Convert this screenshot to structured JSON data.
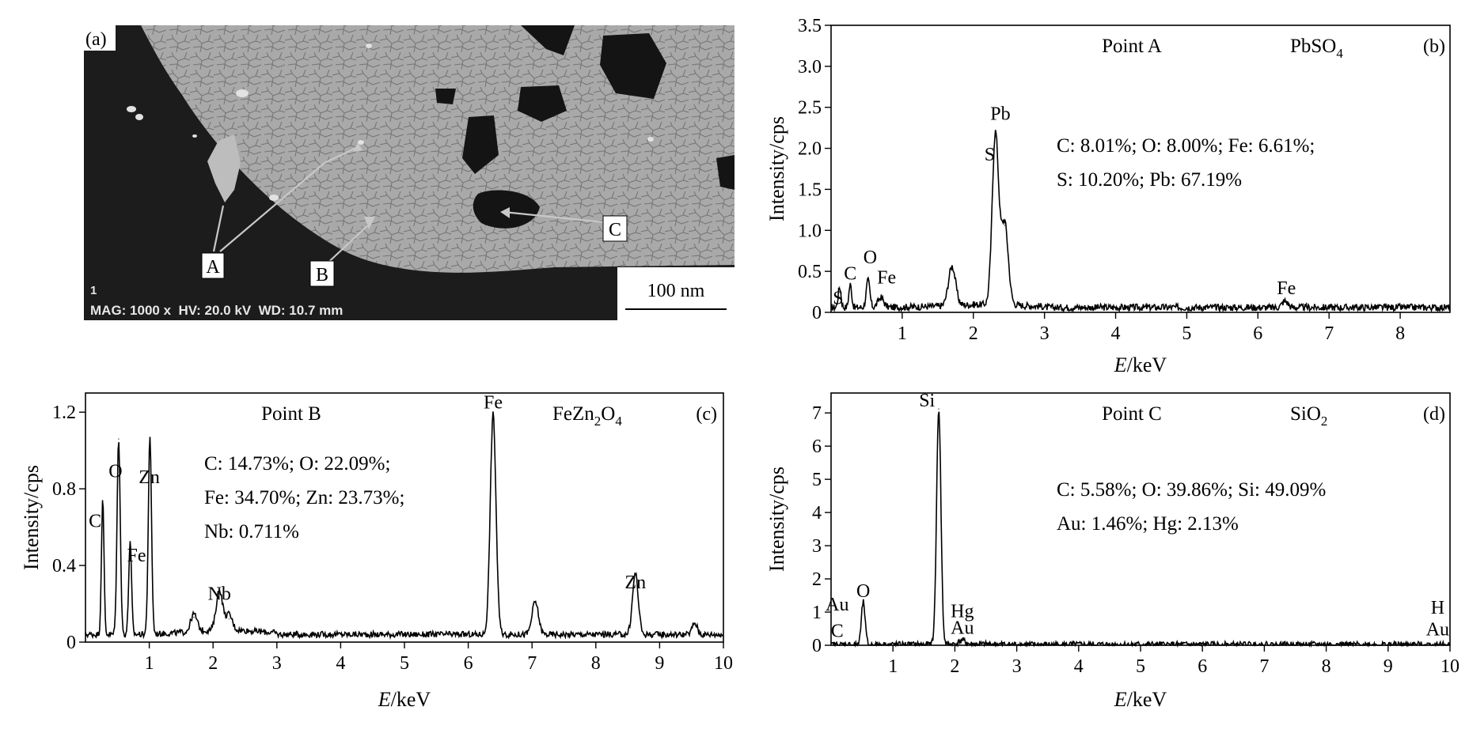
{
  "sem_panel": {
    "panel_label": "(a)",
    "point_labels": [
      "A",
      "B",
      "C"
    ],
    "info_number": "1",
    "info_text": "MAG: 1000 x  HV: 20.0 kV  WD: 10.7 mm",
    "scale_bar_label": "100 nm"
  },
  "chart_data": [
    {
      "panel": "(b)",
      "type": "line",
      "title": "Point A",
      "compound": "PbSO",
      "compound_sub": "4",
      "composition_lines": [
        "C: 8.01%; O: 8.00%; Fe: 6.61%;",
        "S: 10.20%; Pb: 67.19%"
      ],
      "xlabel": "E/keV",
      "ylabel": "Intensity/cps",
      "xlim": [
        0,
        8.7
      ],
      "ylim": [
        0,
        3.5
      ],
      "xticks": [
        1,
        2,
        3,
        4,
        5,
        6,
        7,
        8
      ],
      "yticks": [
        0,
        0.5,
        1.0,
        1.5,
        2.0,
        2.5,
        3.0,
        3.5
      ],
      "ytick_labels": [
        "0",
        "0.5",
        "1.0",
        "1.5",
        "2.0",
        "2.5",
        "3.0",
        "3.5"
      ],
      "baseline": 0.06,
      "peaks": [
        {
          "x": 0.12,
          "y": 0.25,
          "w": 0.02
        },
        {
          "x": 0.27,
          "y": 0.28,
          "w": 0.02
        },
        {
          "x": 0.52,
          "y": 0.33,
          "w": 0.025
        },
        {
          "x": 0.7,
          "y": 0.12,
          "w": 0.04
        },
        {
          "x": 1.7,
          "y": 0.48,
          "w": 0.05
        },
        {
          "x": 2.31,
          "y": 2.08,
          "w": 0.045
        },
        {
          "x": 2.44,
          "y": 1.0,
          "w": 0.05
        },
        {
          "x": 6.38,
          "y": 0.08,
          "w": 0.04
        }
      ],
      "peak_labels": [
        {
          "text": "S",
          "x": 0.1,
          "y": 0.1
        },
        {
          "text": "C",
          "x": 0.27,
          "y": 0.4
        },
        {
          "text": "O",
          "x": 0.55,
          "y": 0.6
        },
        {
          "text": "Fe",
          "x": 0.78,
          "y": 0.35
        },
        {
          "text": "S",
          "x": 2.23,
          "y": 1.85
        },
        {
          "text": "Pb",
          "x": 2.38,
          "y": 2.35
        },
        {
          "text": "Fe",
          "x": 6.4,
          "y": 0.22
        }
      ]
    },
    {
      "panel": "(c)",
      "type": "line",
      "title": "Point B",
      "compound": "FeZn",
      "compound_sub": "2",
      "compound_tail": "O",
      "compound_sub2": "4",
      "composition_lines": [
        "C: 14.73%; O: 22.09%;",
        "Fe: 34.70%; Zn: 23.73%;",
        "Nb: 0.711%"
      ],
      "xlabel": "E/keV",
      "ylabel": "Intensity/cps",
      "xlim": [
        0,
        10
      ],
      "ylim": [
        0,
        1.3
      ],
      "xticks": [
        1,
        2,
        3,
        4,
        5,
        6,
        7,
        8,
        9,
        10
      ],
      "yticks": [
        0,
        0.4,
        0.8,
        1.2
      ],
      "ytick_labels": [
        "0",
        "0.4",
        "0.8",
        "1.2"
      ],
      "baseline": 0.04,
      "peaks": [
        {
          "x": 0.27,
          "y": 0.7,
          "w": 0.02
        },
        {
          "x": 0.52,
          "y": 1.02,
          "w": 0.025
        },
        {
          "x": 0.7,
          "y": 0.48,
          "w": 0.022
        },
        {
          "x": 1.01,
          "y": 1.02,
          "w": 0.025
        },
        {
          "x": 1.7,
          "y": 0.09,
          "w": 0.05
        },
        {
          "x": 2.1,
          "y": 0.21,
          "w": 0.05
        },
        {
          "x": 2.25,
          "y": 0.08,
          "w": 0.05
        },
        {
          "x": 6.39,
          "y": 1.15,
          "w": 0.045
        },
        {
          "x": 7.05,
          "y": 0.17,
          "w": 0.05
        },
        {
          "x": 8.62,
          "y": 0.32,
          "w": 0.045
        },
        {
          "x": 9.55,
          "y": 0.06,
          "w": 0.04
        }
      ],
      "peak_labels": [
        {
          "text": "C",
          "x": 0.15,
          "y": 0.6
        },
        {
          "text": "O",
          "x": 0.47,
          "y": 0.86
        },
        {
          "text": "Zn",
          "x": 1.0,
          "y": 0.83
        },
        {
          "text": "Fe",
          "x": 0.8,
          "y": 0.42
        },
        {
          "text": "Nb",
          "x": 2.1,
          "y": 0.22
        },
        {
          "text": "Fe",
          "x": 6.39,
          "y": 1.22
        },
        {
          "text": "Zn",
          "x": 8.62,
          "y": 0.28
        }
      ]
    },
    {
      "panel": "(d)",
      "type": "line",
      "title": "Point C",
      "compound": "SiO",
      "compound_sub": "2",
      "composition_lines": [
        "C: 5.58%; O: 39.86%; Si: 49.09%",
        "Au: 1.46%; Hg: 2.13%"
      ],
      "xlabel": "E/keV",
      "ylabel": "Intensity/cps",
      "xlim": [
        0,
        10
      ],
      "ylim": [
        0,
        7.6
      ],
      "xticks": [
        1,
        2,
        3,
        4,
        5,
        6,
        7,
        8,
        9,
        10
      ],
      "yticks": [
        0,
        1,
        2,
        3,
        4,
        5,
        6,
        7
      ],
      "ytick_labels": [
        "0",
        "1",
        "2",
        "3",
        "4",
        "5",
        "6",
        "7"
      ],
      "baseline": 0.02,
      "peaks": [
        {
          "x": 0.52,
          "y": 1.28,
          "w": 0.03
        },
        {
          "x": 1.74,
          "y": 7.1,
          "w": 0.035
        },
        {
          "x": 2.12,
          "y": 0.12,
          "w": 0.05
        }
      ],
      "peak_labels": [
        {
          "text": "Au",
          "x": 0.1,
          "y": 1.05
        },
        {
          "text": "C",
          "x": 0.1,
          "y": 0.25
        },
        {
          "text": "O",
          "x": 0.52,
          "y": 1.45
        },
        {
          "text": "Si",
          "x": 1.55,
          "y": 7.2
        },
        {
          "text": "Hg",
          "x": 2.12,
          "y": 0.85
        },
        {
          "text": "Au",
          "x": 2.12,
          "y": 0.35
        },
        {
          "text": "H",
          "x": 9.8,
          "y": 0.95
        },
        {
          "text": "Au",
          "x": 9.8,
          "y": 0.3
        }
      ]
    }
  ]
}
